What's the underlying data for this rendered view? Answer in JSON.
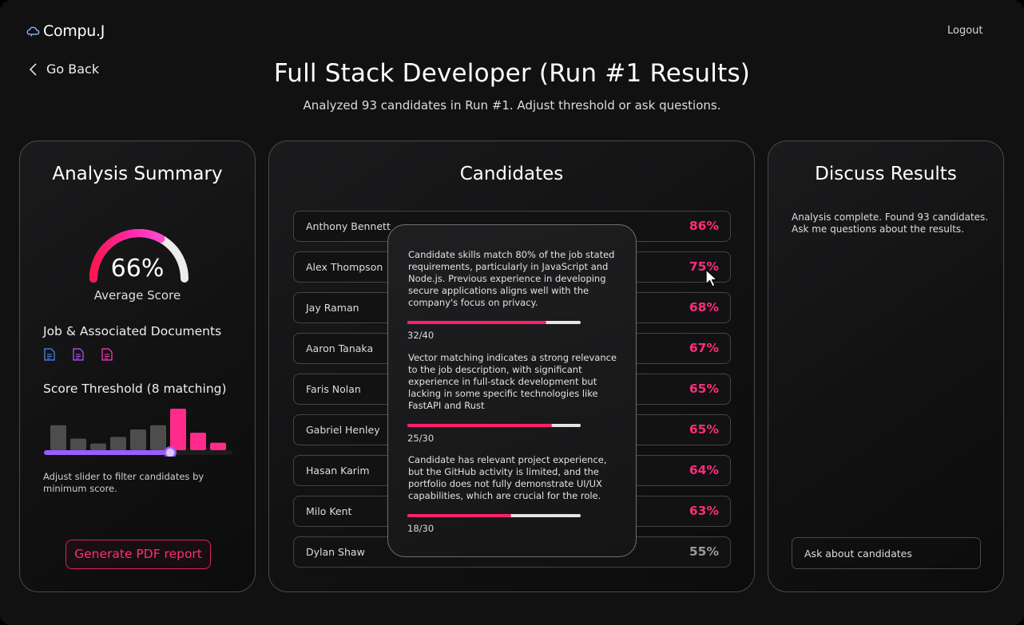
{
  "app": {
    "name": "Compu.J",
    "logout_label": "Logout"
  },
  "nav": {
    "back_label": "Go Back"
  },
  "header": {
    "title": "Full Stack Developer (Run #1 Results)",
    "subtitle": "Analyzed 93 candidates in Run #1. Adjust threshold or ask questions."
  },
  "summary": {
    "title": "Analysis Summary",
    "average_score_value": 66,
    "average_score_text": "66%",
    "average_score_label": "Average Score",
    "documents_label": "Job & Associated Documents",
    "document_icon_colors": [
      "#4a8fff",
      "#b85cff",
      "#ff3fbf"
    ],
    "threshold_label": "Score Threshold (8 matching)",
    "histogram": [
      {
        "value": 0.6,
        "matching": false
      },
      {
        "value": 0.28,
        "matching": false
      },
      {
        "value": 0.16,
        "matching": false
      },
      {
        "value": 0.32,
        "matching": false
      },
      {
        "value": 0.5,
        "matching": false
      },
      {
        "value": 0.6,
        "matching": false
      },
      {
        "value": 1.0,
        "matching": true
      },
      {
        "value": 0.42,
        "matching": true
      },
      {
        "value": 0.18,
        "matching": true
      }
    ],
    "slider_value": 0.67,
    "slider_hint": "Adjust slider to filter candidates by minimum score.",
    "pdf_button_label": "Generate PDF report"
  },
  "candidates": {
    "title": "Candidates",
    "rows": [
      {
        "name": "Anthony Bennett",
        "score": "86%"
      },
      {
        "name": "Alex Thompson",
        "score": "75%"
      },
      {
        "name": "Jay Raman",
        "score": "68%"
      },
      {
        "name": "Aaron Tanaka",
        "score": "67%"
      },
      {
        "name": "Faris Nolan",
        "score": "65%"
      },
      {
        "name": "Gabriel Henley",
        "score": "65%"
      },
      {
        "name": "Hasan Karim",
        "score": "64%"
      },
      {
        "name": "Milo Kent",
        "score": "63%"
      },
      {
        "name": "Dylan Shaw",
        "score": "55%"
      }
    ],
    "tooltip": [
      {
        "text": "Candidate skills match 80% of the job stated requirements, particularly in JavaScript and Node.js. Previous experience in developing secure applications aligns well with the company's focus on privacy.",
        "score": "32/40",
        "fraction": 0.8
      },
      {
        "text": "Vector matching indicates a strong relevance to the job description, with significant experience in full-stack development but lacking in some specific technologies like FastAPI and Rust",
        "score": "25/30",
        "fraction": 0.8333
      },
      {
        "text": "Candidate has relevant project experience, but the GitHub activity is limited, and the portfolio does not fully demonstrate UI/UX capabilities, which are crucial for the role.",
        "score": "18/30",
        "fraction": 0.6
      }
    ]
  },
  "discuss": {
    "title": "Discuss Results",
    "message": "Analysis complete. Found 93 candidates. Ask me questions about the results.",
    "input_placeholder": "Ask about candidates"
  },
  "colors": {
    "accent": "#ff1f6d",
    "threshold_bar": "#ff2a8a",
    "muted_bar": "#4d4d4d",
    "slider_fill": "#9b5cff",
    "score_matching": "#ff2d7a",
    "score_below": "#9a9a9a"
  }
}
